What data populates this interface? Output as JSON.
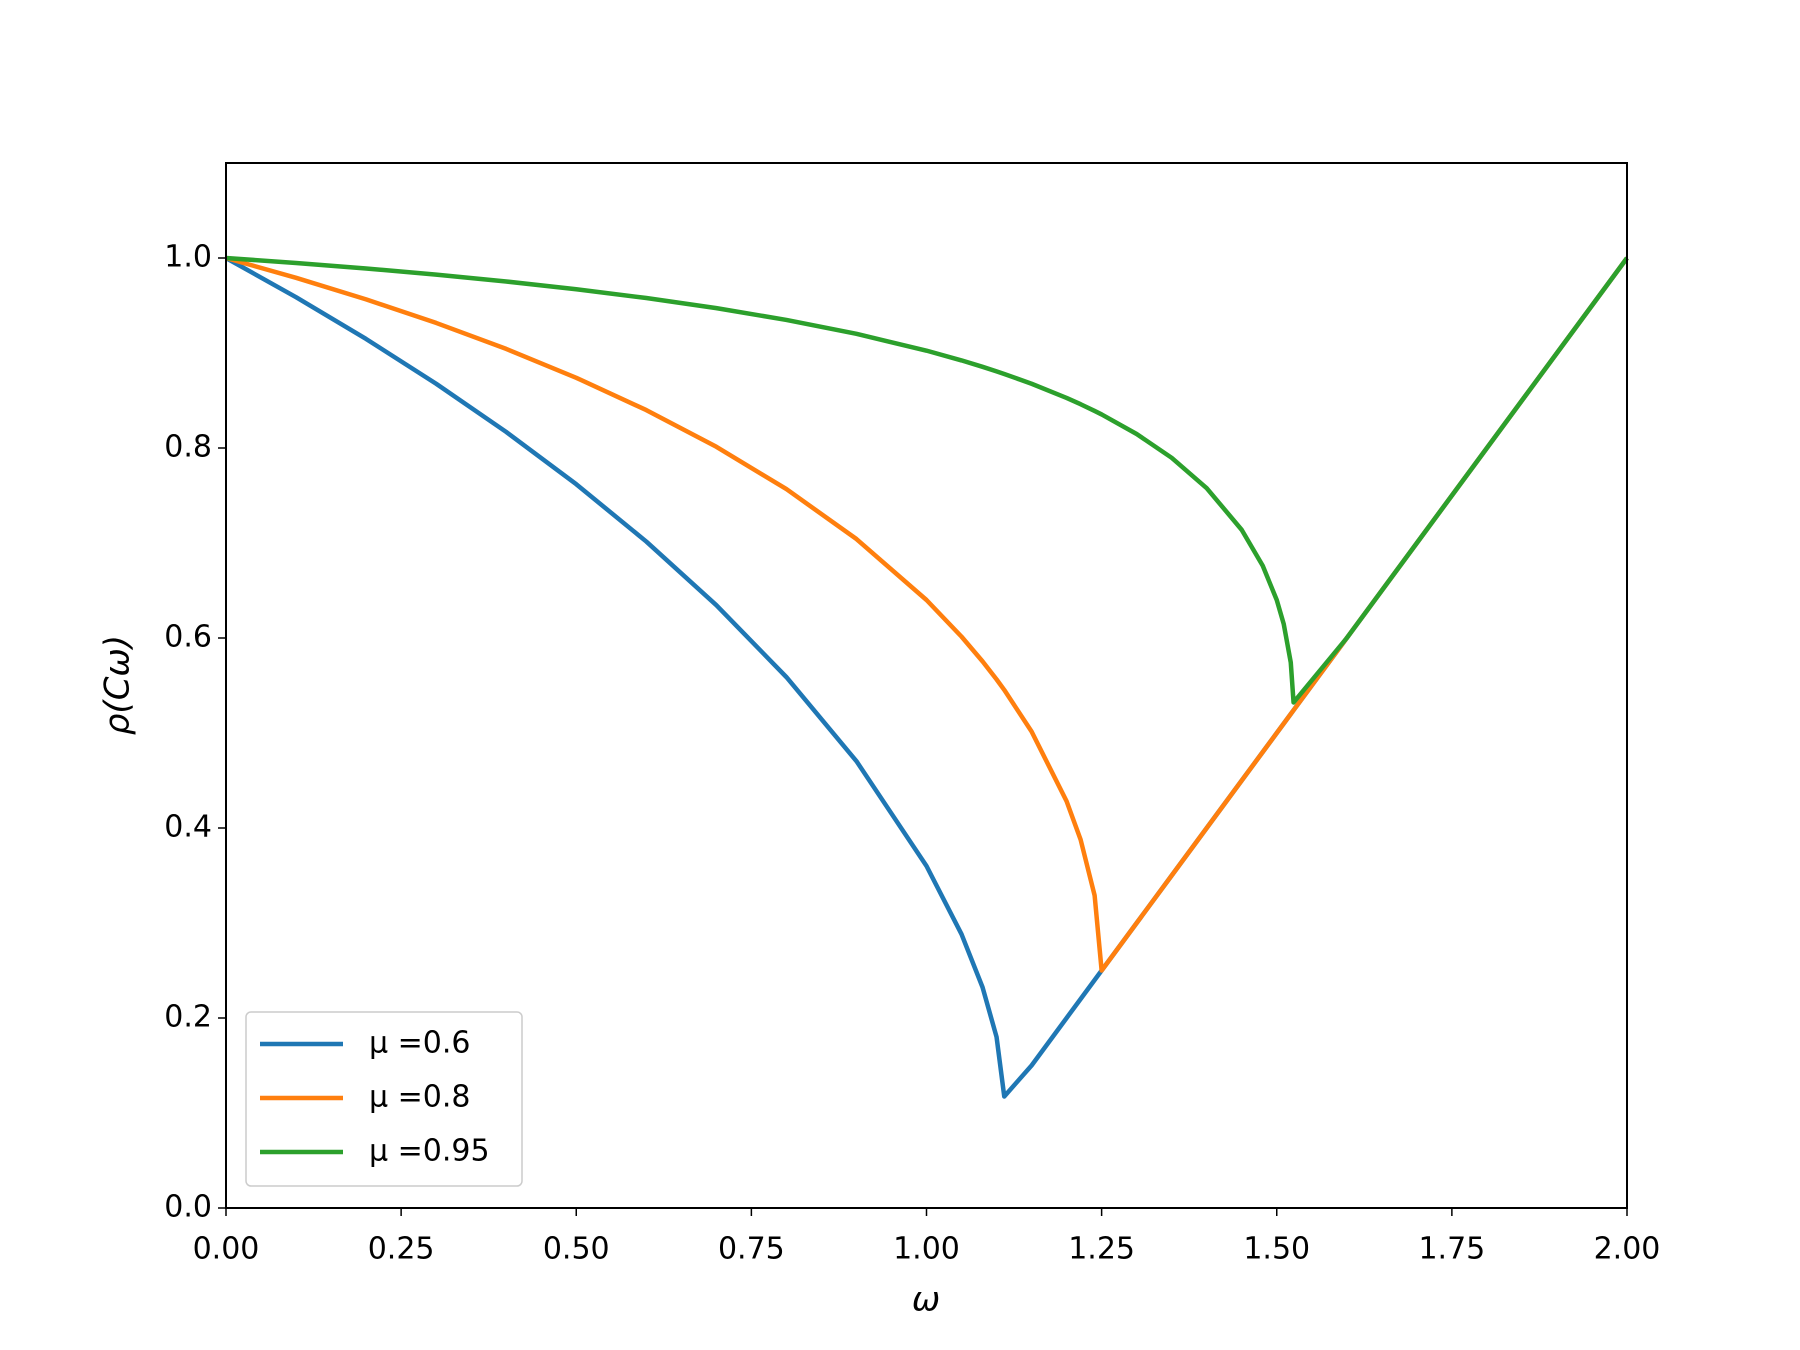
{
  "chart_data": {
    "type": "line",
    "xlabel": "ω",
    "ylabel": "ρ(Cω)",
    "x": [
      0,
      0.1,
      0.2,
      0.3,
      0.4,
      0.5,
      0.6,
      0.7,
      0.8,
      0.9,
      1.0,
      1.05,
      1.08,
      1.1,
      1.111,
      1.15,
      1.2,
      1.22,
      1.24,
      1.25,
      1.3,
      1.35,
      1.4,
      1.45,
      1.48,
      1.5,
      1.51,
      1.52,
      1.524,
      1.6,
      1.7,
      1.8,
      1.9,
      2.0
    ],
    "series": [
      {
        "name": "μ =0.6",
        "color": "#1f77b4",
        "values": [
          1,
          0.95876,
          0.91477,
          0.86766,
          0.81692,
          0.76185,
          0.70152,
          0.63457,
          0.55882,
          0.47034,
          0.36,
          0.28822,
          0.23236,
          0.18006,
          0.1174,
          0.15,
          0.2,
          0.22,
          0.24,
          0.25,
          0.3,
          0.35,
          0.4,
          0.45,
          0.48,
          0.5,
          0.51,
          0.52,
          0.524,
          0.6,
          0.7,
          0.8,
          0.9,
          1.0
        ]
      },
      {
        "name": "μ =0.8",
        "color": "#ff7f0e",
        "values": [
          1,
          0.97916,
          0.95648,
          0.93165,
          0.90431,
          0.87393,
          0.8399,
          0.80128,
          0.75674,
          0.7042,
          0.64,
          0.60145,
          0.57538,
          0.55643,
          0.54537,
          0.50154,
          0.42818,
          0.38776,
          0.32898,
          0.25,
          0.3,
          0.35,
          0.4,
          0.45,
          0.48,
          0.5,
          0.51,
          0.52,
          0.524,
          0.6,
          0.7,
          0.8,
          0.9,
          1.0
        ]
      },
      {
        "name": "μ =0.95",
        "color": "#2ca02c",
        "values": [
          1,
          0.99475,
          0.98895,
          0.9825,
          0.97527,
          0.96713,
          0.95786,
          0.94722,
          0.93481,
          0.92016,
          0.9025,
          0.8922,
          0.88545,
          0.88067,
          0.87794,
          0.86762,
          0.85269,
          0.84608,
          0.83904,
          0.83533,
          0.81476,
          0.78968,
          0.75774,
          0.71382,
          0.67601,
          0.64,
          0.61456,
          0.57431,
          0.53216,
          0.6,
          0.7,
          0.8,
          0.9,
          1.0
        ]
      }
    ],
    "xlim": [
      0,
      2
    ],
    "ylim": [
      0,
      1.1
    ],
    "xticks": [
      {
        "value": 0,
        "label": "0.00"
      },
      {
        "value": 0.25,
        "label": "0.25"
      },
      {
        "value": 0.5,
        "label": "0.50"
      },
      {
        "value": 0.75,
        "label": "0.75"
      },
      {
        "value": 1,
        "label": "1.00"
      },
      {
        "value": 1.25,
        "label": "1.25"
      },
      {
        "value": 1.5,
        "label": "1.50"
      },
      {
        "value": 1.75,
        "label": "1.75"
      },
      {
        "value": 2,
        "label": "2.00"
      }
    ],
    "yticks": [
      {
        "value": 0,
        "label": "0.0"
      },
      0.2,
      0.4,
      0.6,
      0.8,
      {
        "value": 1,
        "label": "1.0"
      }
    ],
    "grid": false,
    "legend": "lower left"
  }
}
